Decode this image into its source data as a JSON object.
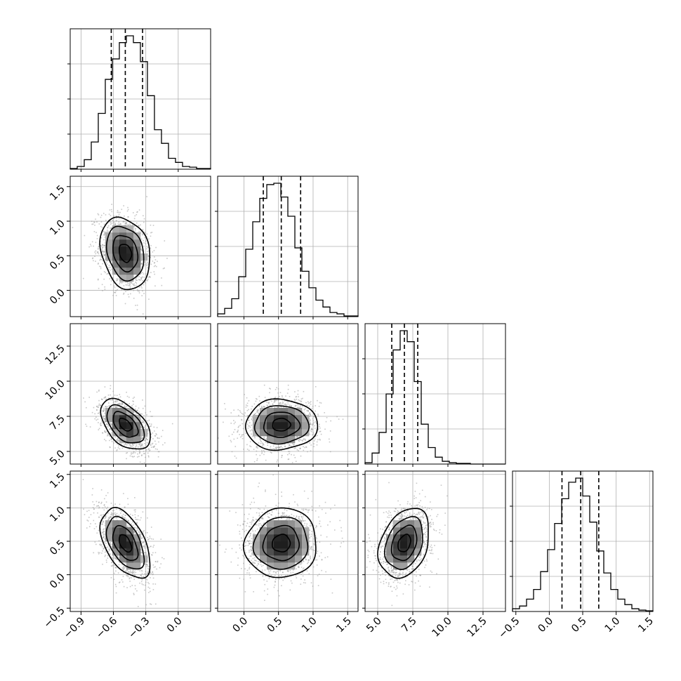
{
  "chart_data": {
    "type": "corner",
    "grid": true,
    "colors": {
      "hist": "#000000",
      "contour": "#000000",
      "scatter": "#9a9a9a",
      "grid": "#b0b0b0"
    },
    "parameters": [
      {
        "id": "p0",
        "range": [
          -1.0,
          0.3
        ],
        "ticks": [
          -0.9,
          -0.6,
          -0.3,
          0.0
        ],
        "tick_labels": [
          "−0.9",
          "−0.6",
          "−0.3",
          "0.0"
        ],
        "quantiles": [
          -0.62,
          -0.49,
          -0.33
        ],
        "hist": [
          0.005,
          0.02,
          0.07,
          0.2,
          0.41,
          0.66,
          0.81,
          0.93,
          0.98,
          0.93,
          0.79,
          0.54,
          0.29,
          0.19,
          0.08,
          0.05,
          0.02,
          0.015,
          0.005,
          0.005
        ]
      },
      {
        "id": "p1",
        "range": [
          -0.38,
          1.65
        ],
        "ticks": [
          0.0,
          0.5,
          1.0,
          1.5
        ],
        "tick_labels": [
          "0.0",
          "0.5",
          "1.0",
          "1.5"
        ],
        "quantiles": [
          0.28,
          0.54,
          0.82
        ],
        "hist": [
          0.02,
          0.06,
          0.13,
          0.29,
          0.49,
          0.69,
          0.86,
          0.96,
          0.97,
          0.87,
          0.73,
          0.5,
          0.33,
          0.21,
          0.12,
          0.07,
          0.03,
          0.02,
          0.005,
          0.005
        ]
      },
      {
        "id": "p2",
        "range": [
          4.1,
          14.1
        ],
        "ticks": [
          5.0,
          7.5,
          10.0,
          12.5
        ],
        "tick_labels": [
          "5.0",
          "7.5",
          "10.0",
          "12.5"
        ],
        "quantiles": [
          6.0,
          6.9,
          7.85
        ],
        "hist": [
          0.01,
          0.08,
          0.23,
          0.51,
          0.83,
          0.97,
          0.89,
          0.6,
          0.29,
          0.12,
          0.05,
          0.02,
          0.01,
          0.005,
          0.005,
          0.0,
          0.0,
          0.0,
          0.0,
          0.0
        ]
      },
      {
        "id": "p3",
        "range": [
          -0.55,
          1.55
        ],
        "ticks": [
          -0.5,
          0.0,
          0.5,
          1.0,
          1.5
        ],
        "tick_labels": [
          "−0.5",
          "0.0",
          "0.5",
          "1.0",
          "1.5"
        ],
        "quantiles": [
          0.19,
          0.47,
          0.74
        ],
        "hist": [
          0.02,
          0.04,
          0.09,
          0.16,
          0.29,
          0.45,
          0.64,
          0.82,
          0.94,
          0.97,
          0.84,
          0.65,
          0.44,
          0.28,
          0.16,
          0.09,
          0.05,
          0.02,
          0.01,
          0.005
        ]
      }
    ],
    "pairs": [
      {
        "x": 0,
        "y": 1,
        "mean": [
          -0.49,
          0.54
        ],
        "sd": [
          0.115,
          0.26
        ],
        "rho": -0.22
      },
      {
        "x": 0,
        "y": 2,
        "mean": [
          -0.49,
          6.9
        ],
        "sd": [
          0.115,
          0.9
        ],
        "rho": -0.5
      },
      {
        "x": 1,
        "y": 2,
        "mean": [
          0.54,
          6.9
        ],
        "sd": [
          0.26,
          0.9
        ],
        "rho": 0.02
      },
      {
        "x": 0,
        "y": 3,
        "mean": [
          -0.49,
          0.47
        ],
        "sd": [
          0.115,
          0.26
        ],
        "rho": -0.5
      },
      {
        "x": 1,
        "y": 3,
        "mean": [
          0.54,
          0.47
        ],
        "sd": [
          0.26,
          0.26
        ],
        "rho": 0.05
      },
      {
        "x": 2,
        "y": 3,
        "mean": [
          6.9,
          0.47
        ],
        "sd": [
          0.9,
          0.26
        ],
        "rho": 0.3
      }
    ]
  }
}
